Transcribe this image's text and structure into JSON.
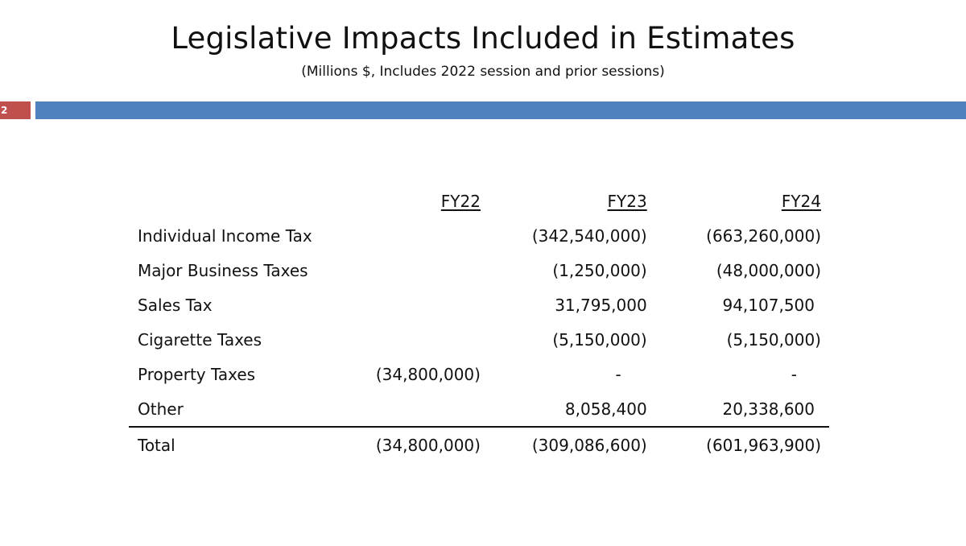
{
  "slide": {
    "title": "Legislative Impacts Included in Estimates",
    "subtitle": "(Millions $, Includes 2022 session and prior sessions)",
    "slide_number": "2",
    "colors": {
      "slide_number_bg": "#c0504d",
      "accent_bar": "#4f81bd"
    }
  },
  "table": {
    "headers": [
      "",
      "FY22",
      "FY23",
      "FY24"
    ],
    "rows": [
      {
        "label": "Individual Income Tax",
        "fy22": "",
        "fy23": "(342,540,000)",
        "fy24": "(663,260,000)"
      },
      {
        "label": "Major Business Taxes",
        "fy22": "",
        "fy23": "(1,250,000)",
        "fy24": "(48,000,000)"
      },
      {
        "label": "Sales Tax",
        "fy22": "",
        "fy23": "31,795,000",
        "fy24": "94,107,500"
      },
      {
        "label": "Cigarette Taxes",
        "fy22": "",
        "fy23": "(5,150,000)",
        "fy24": "(5,150,000)"
      },
      {
        "label": "Property Taxes",
        "fy22": "(34,800,000)",
        "fy23": "-",
        "fy24": "-"
      },
      {
        "label": "Other",
        "fy22": "",
        "fy23": "8,058,400",
        "fy24": "20,338,600"
      }
    ],
    "total": {
      "label": "Total",
      "fy22": "(34,800,000)",
      "fy23": "(309,086,600)",
      "fy24": "(601,963,900)"
    }
  }
}
